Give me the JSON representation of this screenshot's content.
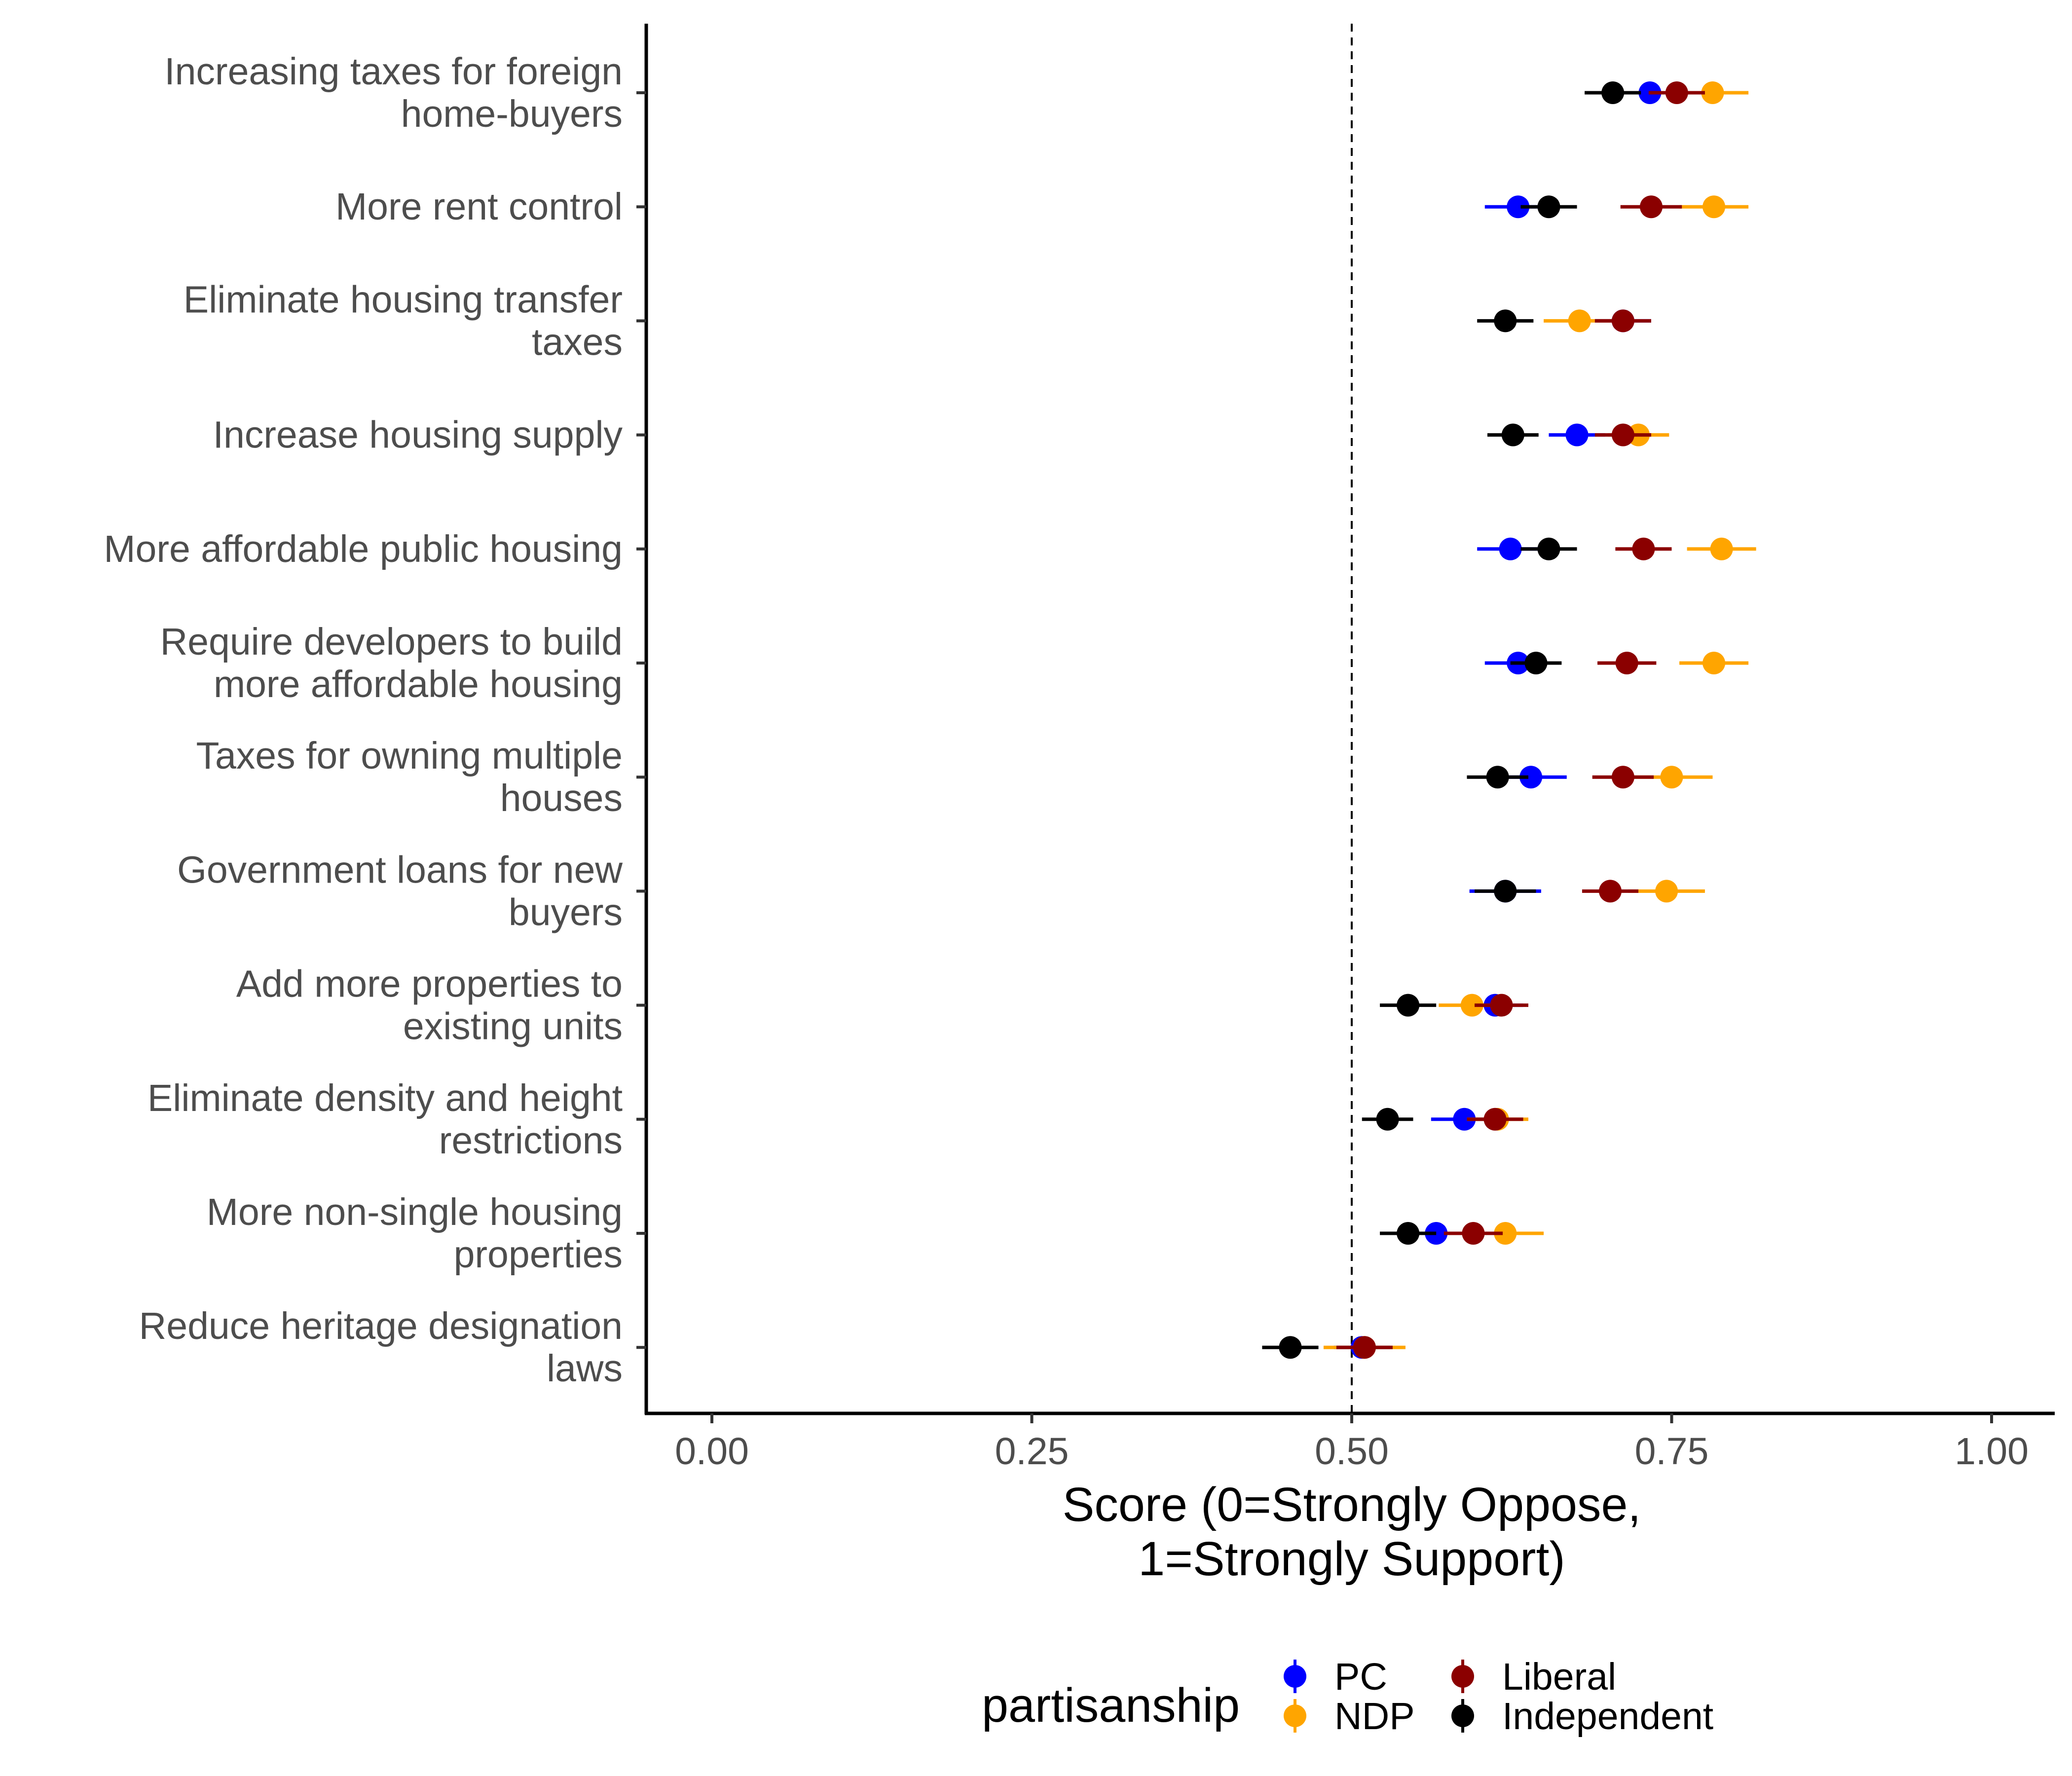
{
  "chart_data": {
    "type": "scatter",
    "subtype": "dot-and-whisker",
    "categories": [
      [
        "Increasing taxes for foreign",
        "home-buyers"
      ],
      [
        "More rent control"
      ],
      [
        "Eliminate housing transfer",
        "taxes"
      ],
      [
        "Increase housing supply"
      ],
      [
        "More affordable public housing"
      ],
      [
        "Require developers to build",
        "more affordable housing"
      ],
      [
        "Taxes for owning multiple",
        "houses"
      ],
      [
        "Government loans for new",
        "buyers"
      ],
      [
        "Add more properties to",
        "existing units"
      ],
      [
        "Eliminate density and height",
        "restrictions"
      ],
      [
        "More non-single housing",
        "properties"
      ],
      [
        "Reduce heritage designation",
        "laws"
      ]
    ],
    "series": [
      {
        "name": "PC",
        "color": "#0000ff",
        "values": [
          0.733,
          0.63,
          0.712,
          0.676,
          0.624,
          0.63,
          0.64,
          0.62,
          0.612,
          0.588,
          0.566,
          0.508
        ],
        "lower": [
          0.707,
          0.604,
          0.69,
          0.654,
          0.598,
          0.604,
          0.612,
          0.592,
          0.59,
          0.562,
          0.542,
          0.486
        ],
        "upper": [
          0.759,
          0.656,
          0.734,
          0.698,
          0.65,
          0.656,
          0.668,
          0.648,
          0.634,
          0.614,
          0.59,
          0.53
        ]
      },
      {
        "name": "NDP",
        "color": "#ffa500",
        "values": [
          0.782,
          0.783,
          0.678,
          0.724,
          0.789,
          0.783,
          0.75,
          0.746,
          0.594,
          0.614,
          0.62,
          0.51
        ],
        "lower": [
          0.754,
          0.756,
          0.65,
          0.7,
          0.762,
          0.756,
          0.718,
          0.716,
          0.568,
          0.59,
          0.59,
          0.478
        ],
        "upper": [
          0.81,
          0.81,
          0.706,
          0.748,
          0.816,
          0.81,
          0.782,
          0.776,
          0.62,
          0.638,
          0.65,
          0.542
        ]
      },
      {
        "name": "Liberal",
        "color": "#8b0000",
        "values": [
          0.754,
          0.734,
          0.712,
          0.712,
          0.728,
          0.715,
          0.712,
          0.702,
          0.617,
          0.612,
          0.595,
          0.51
        ],
        "lower": [
          0.732,
          0.71,
          0.69,
          0.69,
          0.706,
          0.692,
          0.688,
          0.68,
          0.596,
          0.59,
          0.572,
          0.488
        ],
        "upper": [
          0.776,
          0.758,
          0.734,
          0.734,
          0.75,
          0.738,
          0.736,
          0.724,
          0.638,
          0.634,
          0.618,
          0.532
        ]
      },
      {
        "name": "Independent",
        "color": "#000000",
        "values": [
          0.704,
          0.654,
          0.62,
          0.626,
          0.654,
          0.644,
          0.614,
          0.62,
          0.544,
          0.528,
          0.544,
          0.452
        ],
        "lower": [
          0.682,
          0.632,
          0.598,
          0.606,
          0.632,
          0.624,
          0.59,
          0.596,
          0.522,
          0.508,
          0.522,
          0.43
        ],
        "upper": [
          0.726,
          0.676,
          0.642,
          0.646,
          0.676,
          0.664,
          0.638,
          0.644,
          0.566,
          0.548,
          0.566,
          0.474
        ]
      }
    ],
    "xlabel": [
      "Score (0=Strongly Oppose,",
      "1=Strongly Support)"
    ],
    "ylabel": "",
    "xlim": [
      -0.025,
      1.05
    ],
    "xticks": [
      0,
      0.25,
      0.5,
      0.75,
      1
    ],
    "xtick_labels": [
      "0.00",
      "0.25",
      "0.50",
      "0.75",
      "1.00"
    ],
    "reference_line": {
      "x": 0.5,
      "style": "dashed"
    },
    "grid": false,
    "legend": {
      "title": "partisanship",
      "position": "bottom",
      "entries": [
        "PC",
        "NDP",
        "Liberal",
        "Independent"
      ]
    }
  }
}
